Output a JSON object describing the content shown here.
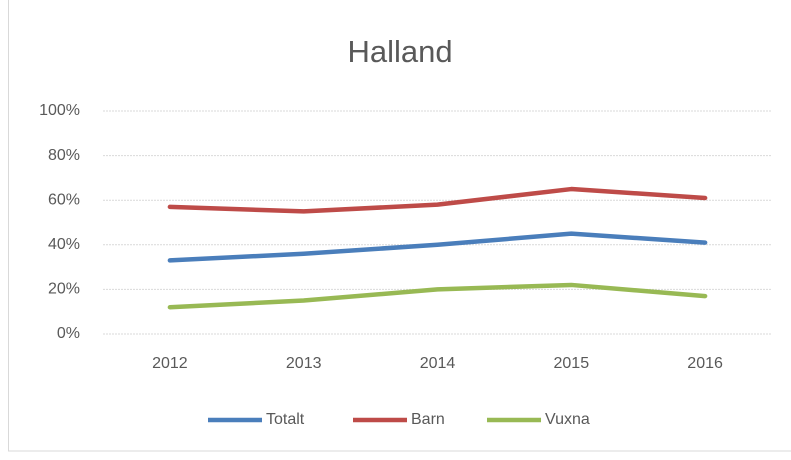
{
  "chart_data": {
    "type": "line",
    "title": "Halland",
    "categories": [
      "2012",
      "2013",
      "2014",
      "2015",
      "2016"
    ],
    "series": [
      {
        "name": "Totalt",
        "color": "#4a7ebb",
        "values": [
          33,
          36,
          40,
          45,
          41
        ]
      },
      {
        "name": "Barn",
        "color": "#be4b48",
        "values": [
          57,
          55,
          58,
          65,
          61
        ]
      },
      {
        "name": "Vuxna",
        "color": "#98b954",
        "values": [
          12,
          15,
          20,
          22,
          17
        ]
      }
    ],
    "ylim": [
      0,
      100
    ],
    "yticks": [
      {
        "value": 0,
        "label": "0%"
      },
      {
        "value": 20,
        "label": "20%"
      },
      {
        "value": 40,
        "label": "40%"
      },
      {
        "value": 60,
        "label": "60%"
      },
      {
        "value": 80,
        "label": "80%"
      },
      {
        "value": 100,
        "label": "100%"
      }
    ],
    "grid": true,
    "legend": "bottom"
  }
}
